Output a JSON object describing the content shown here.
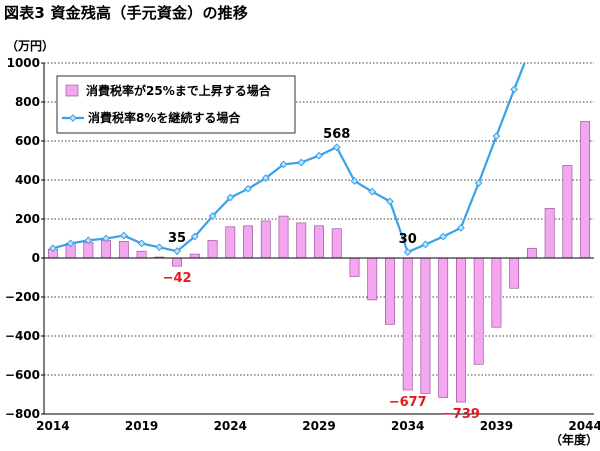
{
  "title": "図表3 資金残高（手元資金）の推移",
  "colors": {
    "bar_fill": "#f4a7f0",
    "bar_stroke": "#8a4a8a",
    "line": "#3aa0e8",
    "marker": "#bfe3f7",
    "negative_label": "#e31a1c",
    "axis": "#000000",
    "grid": "#000000"
  },
  "chart_data": {
    "type": "bar+line",
    "ylabel": "（万円）",
    "xlabel": "（年度）",
    "ylim": [
      -800,
      1000
    ],
    "yticks": [
      -800,
      -600,
      -400,
      -200,
      0,
      200,
      400,
      600,
      800,
      1000
    ],
    "ytick_labels": [
      "−800",
      "−600",
      "−400",
      "−200",
      "0",
      "200",
      "400",
      "600",
      "800",
      "1000"
    ],
    "x": [
      2014,
      2015,
      2016,
      2017,
      2018,
      2019,
      2020,
      2021,
      2022,
      2023,
      2024,
      2025,
      2026,
      2027,
      2028,
      2029,
      2030,
      2031,
      2032,
      2033,
      2034,
      2035,
      2036,
      2037,
      2038,
      2039,
      2040,
      2041,
      2042,
      2043,
      2044
    ],
    "xtick_labels": [
      "2014",
      "2019",
      "2024",
      "2029",
      "2034",
      "2039",
      "2044"
    ],
    "xtick_values": [
      2014,
      2019,
      2024,
      2029,
      2034,
      2039,
      2044
    ],
    "legend_position": "top-left",
    "grid": true,
    "series": [
      {
        "name": "消費税率が25%まで上昇する場合",
        "type": "bar",
        "values": [
          45,
          75,
          80,
          90,
          85,
          35,
          5,
          -42,
          20,
          90,
          160,
          165,
          190,
          215,
          180,
          165,
          150,
          -95,
          -215,
          -340,
          -677,
          -695,
          -715,
          -739,
          -545,
          -355,
          -155,
          50,
          255,
          475,
          700
        ]
      },
      {
        "name": "消費税率8%を継続する場合",
        "type": "line",
        "values": [
          50,
          75,
          90,
          100,
          115,
          75,
          55,
          35,
          110,
          215,
          310,
          355,
          410,
          480,
          490,
          525,
          568,
          395,
          340,
          290,
          30,
          70,
          110,
          155,
          385,
          625,
          865,
          1095,
          null,
          null,
          null
        ]
      }
    ],
    "annotations": [
      {
        "text": "35",
        "x": 2021,
        "series": 1,
        "color": "black"
      },
      {
        "text": "568",
        "x": 2030,
        "series": 1,
        "color": "black"
      },
      {
        "text": "30",
        "x": 2034,
        "series": 1,
        "color": "black"
      },
      {
        "text": "−42",
        "x": 2021,
        "series": 0,
        "color": "red"
      },
      {
        "text": "−677",
        "x": 2034,
        "series": 0,
        "color": "red"
      },
      {
        "text": "−739",
        "x": 2037,
        "series": 0,
        "color": "red"
      }
    ]
  }
}
